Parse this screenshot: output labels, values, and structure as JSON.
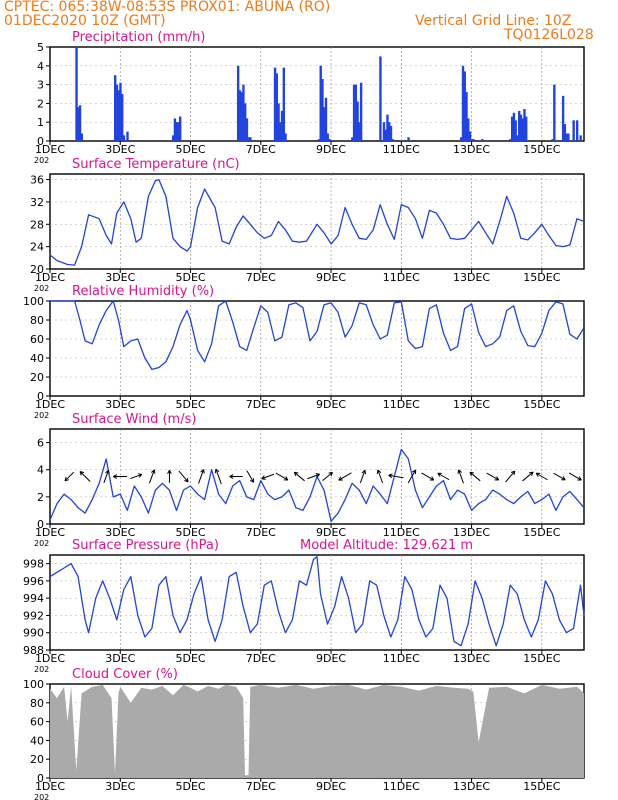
{
  "header": {
    "line1": "CPTEC:   065:38W-08:53S   PROX01: ABUNA (RO)",
    "line2": "01DEC2020 10Z (GMT)",
    "right1": "Vertical Grid Line: 10Z",
    "right2": "TQ0126L028"
  },
  "colors": {
    "header": "#f07a1c",
    "title": "#e0148c",
    "series": "#2244dd",
    "cloud": "#aaaaaa",
    "wind_arrow": "#000000"
  },
  "x_axis": {
    "tick_labels": [
      "1DEC",
      "3DEC",
      "5DEC",
      "7DEC",
      "9DEC",
      "11DEC",
      "13DEC",
      "15DEC"
    ],
    "tick_days": [
      1,
      3,
      5,
      7,
      9,
      11,
      13,
      15
    ],
    "year_fragment": "202",
    "range_days": [
      1,
      16.2
    ]
  },
  "chart_data": [
    {
      "type": "bar",
      "title": "Precipitation (mm/h)",
      "ylim": [
        0,
        5
      ],
      "yticks": [
        0,
        1,
        2,
        3,
        4,
        5
      ],
      "x": [
        1.75,
        1.8,
        1.85,
        1.9,
        2.85,
        2.9,
        2.95,
        3.0,
        3.05,
        3.1,
        3.2,
        4.5,
        4.55,
        4.6,
        4.65,
        4.7,
        6.35,
        6.4,
        6.45,
        6.5,
        6.55,
        6.6,
        6.65,
        6.7,
        7.4,
        7.45,
        7.5,
        7.55,
        7.6,
        7.65,
        7.7,
        8.65,
        8.7,
        8.75,
        8.8,
        8.85,
        8.9,
        8.95,
        9.6,
        9.65,
        9.7,
        9.75,
        9.8,
        9.85,
        10.4,
        10.5,
        10.55,
        10.6,
        10.65,
        10.7,
        10.75,
        11.2,
        12.7,
        12.75,
        12.8,
        12.85,
        12.9,
        12.95,
        13.0,
        13.05,
        13.3,
        14.1,
        14.15,
        14.2,
        14.25,
        14.3,
        14.35,
        14.4,
        14.45,
        14.5,
        14.55,
        15.3,
        15.35,
        15.6,
        15.65,
        15.7,
        15.75,
        15.9,
        16.0,
        16.1
      ],
      "values": [
        5.0,
        1.8,
        1.9,
        0.4,
        3.5,
        3.0,
        2.7,
        3.1,
        2.5,
        0.3,
        0.5,
        0.3,
        1.2,
        1.0,
        1.0,
        1.3,
        4.0,
        2.7,
        2.6,
        3.0,
        2.0,
        1.2,
        0.2,
        0.2,
        3.9,
        3.6,
        2.0,
        1.0,
        1.6,
        3.9,
        0.4,
        0.1,
        4.0,
        3.3,
        1.8,
        2.3,
        0.4,
        0.1,
        0.2,
        3.0,
        3.0,
        2.1,
        1.0,
        3.1,
        4.5,
        1.0,
        0.6,
        1.4,
        1.0,
        0.8,
        0.1,
        0.2,
        0.2,
        4.0,
        3.7,
        2.6,
        1.2,
        0.5,
        0.1,
        0.1,
        0.1,
        0.1,
        1.3,
        1.5,
        1.1,
        0.3,
        1.6,
        1.4,
        1.2,
        1.7,
        1.3,
        0.1,
        3.0,
        2.4,
        0.9,
        0.4,
        0.4,
        1.1,
        1.1,
        0.3
      ]
    },
    {
      "type": "line",
      "title": "Surface Temperature (nC)",
      "ylim": [
        20,
        37
      ],
      "yticks": [
        20,
        24,
        28,
        32,
        36
      ],
      "x": [
        1.0,
        1.2,
        1.5,
        1.7,
        1.9,
        2.1,
        2.4,
        2.6,
        2.75,
        2.9,
        3.1,
        3.3,
        3.45,
        3.6,
        3.8,
        4.0,
        4.1,
        4.3,
        4.5,
        4.7,
        4.9,
        5.0,
        5.2,
        5.4,
        5.7,
        5.9,
        6.1,
        6.3,
        6.5,
        6.7,
        6.9,
        7.1,
        7.3,
        7.5,
        7.7,
        7.9,
        8.1,
        8.3,
        8.6,
        8.8,
        9.0,
        9.2,
        9.4,
        9.6,
        9.8,
        10.0,
        10.2,
        10.4,
        10.6,
        10.8,
        11.0,
        11.2,
        11.4,
        11.6,
        11.8,
        12.0,
        12.2,
        12.4,
        12.6,
        12.8,
        13.0,
        13.2,
        13.4,
        13.6,
        13.8,
        14.0,
        14.2,
        14.4,
        14.6,
        14.8,
        15.0,
        15.2,
        15.4,
        15.6,
        15.8,
        16.0,
        16.2
      ],
      "values": [
        22.5,
        21.5,
        20.8,
        20.7,
        24.0,
        29.7,
        29.0,
        26.0,
        24.5,
        30.0,
        32.0,
        29.0,
        24.8,
        25.5,
        33.0,
        35.8,
        36.0,
        33.0,
        25.5,
        24.0,
        23.2,
        24.0,
        31.0,
        34.3,
        31.0,
        25.0,
        24.5,
        27.5,
        29.5,
        28.0,
        26.5,
        25.5,
        26.0,
        28.5,
        27.0,
        25.0,
        24.8,
        25.0,
        28.0,
        26.5,
        24.5,
        26.0,
        31.0,
        28.0,
        25.5,
        25.3,
        27.0,
        31.5,
        28.0,
        25.3,
        31.5,
        31.0,
        29.0,
        25.5,
        30.5,
        30.0,
        28.0,
        25.5,
        25.3,
        25.5,
        27.0,
        28.5,
        26.5,
        24.5,
        28.5,
        33.0,
        30.0,
        25.5,
        25.2,
        26.5,
        28.0,
        26.0,
        24.2,
        24.0,
        24.3,
        29.0,
        28.5
      ]
    },
    {
      "type": "line",
      "title": "Relative Humidity (%)",
      "ylim": [
        0,
        100
      ],
      "yticks": [
        0,
        20,
        40,
        60,
        80,
        100
      ],
      "x": [
        1.0,
        1.5,
        1.7,
        1.85,
        2.0,
        2.2,
        2.4,
        2.6,
        2.8,
        2.95,
        3.1,
        3.3,
        3.5,
        3.7,
        3.9,
        4.1,
        4.3,
        4.5,
        4.7,
        4.9,
        5.0,
        5.2,
        5.4,
        5.6,
        5.8,
        6.0,
        6.2,
        6.4,
        6.6,
        6.8,
        7.0,
        7.2,
        7.4,
        7.6,
        7.8,
        8.0,
        8.2,
        8.4,
        8.6,
        8.8,
        9.0,
        9.2,
        9.4,
        9.6,
        9.8,
        10.0,
        10.2,
        10.4,
        10.6,
        10.8,
        11.0,
        11.2,
        11.4,
        11.6,
        11.8,
        12.0,
        12.2,
        12.4,
        12.6,
        12.8,
        13.0,
        13.2,
        13.4,
        13.6,
        13.8,
        14.0,
        14.2,
        14.4,
        14.6,
        14.8,
        15.0,
        15.2,
        15.4,
        15.6,
        15.8,
        16.0,
        16.2
      ],
      "values": [
        100,
        100,
        100,
        80,
        58,
        55,
        75,
        90,
        100,
        80,
        52,
        58,
        60,
        40,
        28,
        30,
        36,
        52,
        75,
        90,
        80,
        48,
        36,
        55,
        95,
        100,
        78,
        52,
        48,
        72,
        95,
        88,
        58,
        62,
        96,
        98,
        93,
        58,
        68,
        96,
        98,
        88,
        62,
        74,
        98,
        96,
        75,
        60,
        64,
        98,
        99,
        58,
        50,
        52,
        92,
        96,
        66,
        48,
        52,
        92,
        97,
        67,
        52,
        55,
        62,
        90,
        95,
        68,
        53,
        52,
        66,
        90,
        99,
        97,
        65,
        60,
        72
      ]
    },
    {
      "type": "line",
      "title": "Surface Wind (m/s)",
      "ylim": [
        0,
        7
      ],
      "yticks": [
        0,
        2,
        4,
        6
      ],
      "x": [
        1.0,
        1.2,
        1.4,
        1.6,
        1.8,
        2.0,
        2.2,
        2.4,
        2.6,
        2.8,
        3.0,
        3.2,
        3.4,
        3.6,
        3.8,
        4.0,
        4.2,
        4.4,
        4.6,
        4.8,
        5.0,
        5.2,
        5.4,
        5.6,
        5.8,
        6.0,
        6.2,
        6.4,
        6.6,
        6.8,
        7.0,
        7.2,
        7.4,
        7.6,
        7.8,
        8.0,
        8.2,
        8.4,
        8.6,
        8.8,
        9.0,
        9.2,
        9.4,
        9.6,
        9.8,
        10.0,
        10.2,
        10.4,
        10.6,
        10.8,
        11.0,
        11.2,
        11.4,
        11.6,
        11.8,
        12.0,
        12.2,
        12.4,
        12.6,
        12.8,
        13.0,
        13.2,
        13.4,
        13.6,
        13.8,
        14.0,
        14.2,
        14.4,
        14.6,
        14.8,
        15.0,
        15.2,
        15.4,
        15.6,
        15.8,
        16.0,
        16.2
      ],
      "values": [
        0.3,
        1.5,
        2.2,
        1.8,
        1.2,
        0.8,
        1.8,
        3.0,
        4.8,
        2.0,
        2.2,
        1.0,
        2.8,
        2.0,
        0.8,
        2.5,
        3.0,
        2.5,
        1.0,
        2.5,
        2.8,
        2.2,
        1.8,
        4.0,
        2.2,
        1.5,
        2.8,
        3.2,
        2.0,
        1.8,
        3.2,
        2.2,
        1.8,
        2.0,
        2.5,
        1.2,
        1.0,
        2.0,
        3.5,
        2.5,
        0.2,
        0.8,
        1.8,
        3.0,
        2.5,
        1.5,
        2.8,
        2.2,
        1.5,
        3.5,
        5.5,
        4.8,
        2.5,
        1.2,
        2.0,
        2.8,
        3.2,
        1.8,
        2.5,
        2.2,
        1.0,
        1.5,
        1.8,
        2.5,
        2.2,
        1.8,
        1.5,
        2.0,
        2.4,
        1.5,
        1.8,
        2.2,
        1.0,
        2.0,
        2.4,
        1.8,
        1.2
      ],
      "arrows": [
        {
          "day": 1.55,
          "speed": 1.3,
          "from_deg": 45
        },
        {
          "day": 2.0,
          "speed": 1.8,
          "from_deg": 135
        },
        {
          "day": 2.6,
          "speed": 1.6,
          "from_deg": 200
        },
        {
          "day": 3.0,
          "speed": 1.7,
          "from_deg": 90
        },
        {
          "day": 3.45,
          "speed": 1.3,
          "from_deg": 250
        },
        {
          "day": 3.9,
          "speed": 1.8,
          "from_deg": 200
        },
        {
          "day": 4.4,
          "speed": 1.4,
          "from_deg": 180
        },
        {
          "day": 4.8,
          "speed": 1.8,
          "from_deg": 320
        },
        {
          "day": 5.3,
          "speed": 2.0,
          "from_deg": 200
        },
        {
          "day": 5.8,
          "speed": 2.2,
          "from_deg": 160
        },
        {
          "day": 6.3,
          "speed": 1.5,
          "from_deg": 90
        },
        {
          "day": 6.7,
          "speed": 1.6,
          "from_deg": 330
        },
        {
          "day": 7.2,
          "speed": 1.5,
          "from_deg": 70
        },
        {
          "day": 7.6,
          "speed": 1.7,
          "from_deg": 300
        },
        {
          "day": 8.1,
          "speed": 1.6,
          "from_deg": 130
        },
        {
          "day": 8.5,
          "speed": 1.5,
          "from_deg": 250
        },
        {
          "day": 8.9,
          "speed": 1.5,
          "from_deg": 230
        },
        {
          "day": 9.4,
          "speed": 1.9,
          "from_deg": 60
        },
        {
          "day": 9.9,
          "speed": 1.6,
          "from_deg": 200
        },
        {
          "day": 10.4,
          "speed": 1.7,
          "from_deg": 160
        },
        {
          "day": 10.85,
          "speed": 2.0,
          "from_deg": 100
        },
        {
          "day": 11.3,
          "speed": 2.0,
          "from_deg": 210
        },
        {
          "day": 11.75,
          "speed": 1.8,
          "from_deg": 300
        },
        {
          "day": 12.2,
          "speed": 1.5,
          "from_deg": 120
        },
        {
          "day": 12.7,
          "speed": 1.8,
          "from_deg": 160
        },
        {
          "day": 13.1,
          "speed": 1.6,
          "from_deg": 130
        },
        {
          "day": 13.6,
          "speed": 1.7,
          "from_deg": 300
        },
        {
          "day": 14.1,
          "speed": 1.8,
          "from_deg": 220
        },
        {
          "day": 14.6,
          "speed": 1.7,
          "from_deg": 230
        },
        {
          "day": 15.0,
          "speed": 1.5,
          "from_deg": 120
        },
        {
          "day": 15.5,
          "speed": 1.6,
          "from_deg": 300
        },
        {
          "day": 15.95,
          "speed": 1.8,
          "from_deg": 300
        }
      ]
    },
    {
      "type": "line",
      "title": "Surface Pressure (hPa)",
      "annotation": "Model Altitude: 129.621 m",
      "ylim": [
        988,
        999
      ],
      "yticks": [
        988,
        990,
        992,
        994,
        996,
        998
      ],
      "x": [
        1.0,
        1.2,
        1.4,
        1.6,
        1.8,
        2.0,
        2.1,
        2.3,
        2.5,
        2.7,
        2.9,
        3.1,
        3.3,
        3.5,
        3.7,
        3.9,
        4.1,
        4.3,
        4.5,
        4.7,
        4.9,
        5.1,
        5.3,
        5.5,
        5.7,
        5.9,
        6.1,
        6.3,
        6.5,
        6.7,
        6.9,
        7.1,
        7.3,
        7.5,
        7.7,
        7.9,
        8.1,
        8.3,
        8.5,
        8.6,
        8.7,
        8.9,
        9.1,
        9.3,
        9.5,
        9.7,
        9.9,
        10.1,
        10.3,
        10.5,
        10.7,
        10.9,
        11.1,
        11.3,
        11.5,
        11.7,
        11.9,
        12.1,
        12.3,
        12.5,
        12.7,
        12.9,
        13.1,
        13.3,
        13.5,
        13.7,
        13.9,
        14.1,
        14.3,
        14.5,
        14.7,
        14.9,
        15.1,
        15.3,
        15.5,
        15.7,
        15.9,
        16.1,
        16.2
      ],
      "values": [
        996.5,
        997.0,
        997.5,
        998.0,
        996.5,
        991.5,
        990.0,
        994.0,
        996.0,
        994.0,
        991.5,
        995.0,
        996.5,
        992.0,
        989.5,
        990.5,
        995.5,
        996.5,
        992.0,
        990.0,
        991.5,
        994.5,
        996.5,
        991.5,
        989.0,
        991.5,
        996.5,
        997.0,
        993.0,
        990.0,
        991.0,
        995.5,
        996.0,
        992.5,
        990.0,
        991.5,
        996.0,
        995.5,
        998.5,
        998.8,
        994.5,
        991.0,
        993.0,
        996.5,
        994.0,
        990.0,
        991.0,
        996.0,
        995.5,
        992.0,
        989.5,
        991.5,
        996.5,
        995.0,
        991.5,
        989.5,
        990.5,
        995.5,
        994.0,
        989.0,
        988.5,
        991.0,
        996.0,
        994.0,
        991.0,
        988.5,
        991.0,
        995.5,
        994.5,
        991.5,
        989.5,
        991.5,
        996.0,
        994.5,
        991.5,
        990.0,
        990.5,
        995.5,
        992.0
      ]
    },
    {
      "type": "area",
      "title": "Cloud Cover (%)",
      "ylim": [
        0,
        100
      ],
      "yticks": [
        0,
        20,
        40,
        60,
        80,
        100
      ],
      "x": [
        1.0,
        1.2,
        1.4,
        1.5,
        1.6,
        1.75,
        1.9,
        2.2,
        2.5,
        2.75,
        2.85,
        2.95,
        3.0,
        3.3,
        3.6,
        3.9,
        4.2,
        4.5,
        4.8,
        5.0,
        5.2,
        5.5,
        5.8,
        6.0,
        6.3,
        6.5,
        6.55,
        6.65,
        6.7,
        7.0,
        7.5,
        8.0,
        8.5,
        9.0,
        9.5,
        10.0,
        10.5,
        11.0,
        11.5,
        12.0,
        12.5,
        12.9,
        13.05,
        13.2,
        13.5,
        14.0,
        14.5,
        15.0,
        15.5,
        16.0,
        16.2
      ],
      "values": [
        95,
        85,
        97,
        60,
        98,
        8,
        90,
        97,
        99,
        85,
        5,
        90,
        97,
        80,
        96,
        94,
        98,
        88,
        99,
        96,
        92,
        98,
        95,
        99,
        97,
        85,
        3,
        3,
        97,
        99,
        96,
        99,
        95,
        98,
        99,
        94,
        99,
        97,
        93,
        98,
        96,
        95,
        92,
        38,
        96,
        97,
        90,
        99,
        95,
        97,
        90
      ]
    }
  ]
}
